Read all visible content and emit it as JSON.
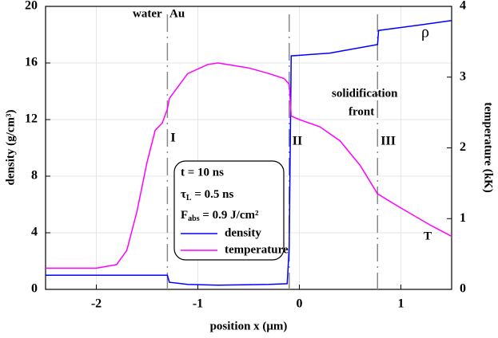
{
  "chart_data": {
    "type": "line",
    "xlabel": "position x (μm)",
    "ylabel": "density (g/cm³)",
    "y2label": "temperature (kK)",
    "xlim": [
      -2.5,
      1.5
    ],
    "xticks": [
      -2,
      -1,
      0,
      1
    ],
    "ylim": [
      0,
      20
    ],
    "yticks": [
      0,
      4,
      8,
      12,
      16,
      20
    ],
    "y2lim": [
      0,
      4
    ],
    "y2ticks": [
      0,
      1,
      2,
      3,
      4
    ],
    "grid": true,
    "series": [
      {
        "name": "density",
        "color": "#0000ff",
        "x": [
          -2.5,
          -1.3,
          -1.28,
          -1.1,
          -0.8,
          -0.3,
          -0.12,
          -0.1,
          -0.08,
          0.3,
          0.77,
          0.78,
          1.2,
          1.5
        ],
        "values": [
          1.0,
          1.0,
          0.5,
          0.35,
          0.3,
          0.35,
          0.4,
          3,
          16.5,
          16.7,
          17.3,
          18.3,
          18.7,
          19.0
        ]
      },
      {
        "name": "temperature",
        "color": "#ff00ff",
        "axis": "y2",
        "x": [
          -2.5,
          -2.0,
          -1.8,
          -1.7,
          -1.6,
          -1.5,
          -1.42,
          -1.35,
          -1.3,
          -1.28,
          -1.1,
          -0.9,
          -0.8,
          -0.5,
          -0.3,
          -0.15,
          -0.1,
          -0.08,
          0,
          0.2,
          0.4,
          0.6,
          0.77,
          1.0,
          1.3,
          1.5
        ],
        "values": [
          0.3,
          0.3,
          0.35,
          0.55,
          1.1,
          1.8,
          2.25,
          2.35,
          2.55,
          2.7,
          3.05,
          3.18,
          3.2,
          3.13,
          3.05,
          2.98,
          2.9,
          2.45,
          2.4,
          2.3,
          2.1,
          1.75,
          1.35,
          1.15,
          0.9,
          0.75
        ]
      }
    ],
    "markers": [
      {
        "x": -1.3,
        "label": "I"
      },
      {
        "x": -0.1,
        "label": "II"
      },
      {
        "x": 0.77,
        "label": "III"
      }
    ],
    "annotations": [
      "water",
      "Au",
      "solidification",
      "front",
      "ρ",
      "T"
    ],
    "legend_info": {
      "line1": "t = 10 ns",
      "line2": {
        "main": "τ",
        "sub": "L",
        "rest": " = 0.5 ns"
      },
      "line3": {
        "main": "F",
        "sub": "abs",
        "rest": " = 0.9 J/cm²"
      }
    }
  }
}
